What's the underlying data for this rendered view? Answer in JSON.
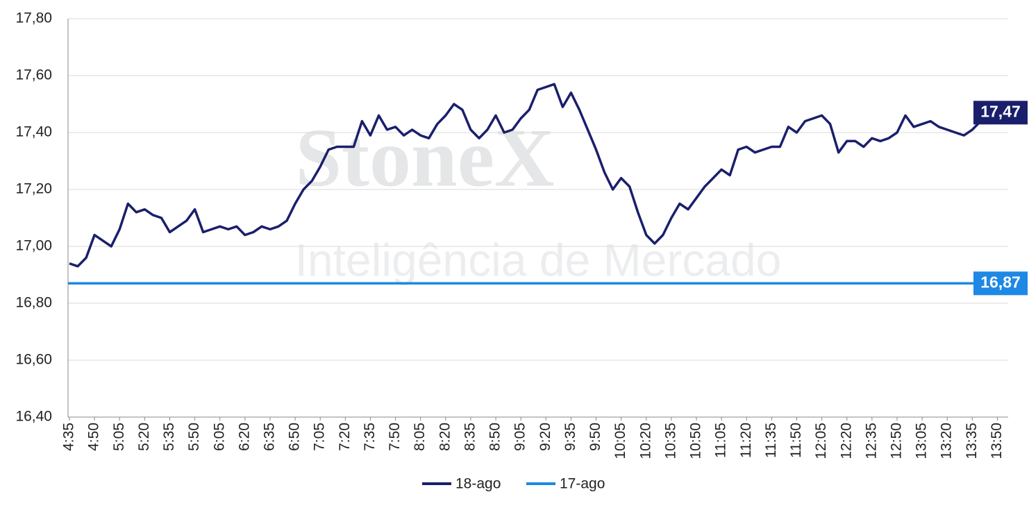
{
  "chart_data": {
    "type": "line",
    "watermark": {
      "brand": "StoneX",
      "tagline": "Inteligência de Mercado"
    },
    "categories": [
      "4:35",
      null,
      null,
      "4:50",
      null,
      null,
      "5:05",
      null,
      null,
      "5:20",
      null,
      null,
      "5:35",
      null,
      null,
      "5:50",
      null,
      null,
      "6:05",
      null,
      null,
      "6:20",
      null,
      null,
      "6:35",
      null,
      null,
      "6:50",
      null,
      null,
      "7:05",
      null,
      null,
      "7:20",
      null,
      null,
      "7:35",
      null,
      null,
      "7:50",
      null,
      null,
      "8:05",
      null,
      null,
      "8:20",
      null,
      null,
      "8:35",
      null,
      null,
      "8:50",
      null,
      null,
      "9:05",
      null,
      null,
      "9:20",
      null,
      null,
      "9:35",
      null,
      null,
      "9:50",
      null,
      null,
      "10:05",
      null,
      null,
      "10:20",
      null,
      null,
      "10:35",
      null,
      null,
      "10:50",
      null,
      null,
      "11:05",
      null,
      null,
      "11:20",
      null,
      null,
      "11:35",
      null,
      null,
      "11:50",
      null,
      null,
      "12:05",
      null,
      null,
      "12:20",
      null,
      null,
      "12:35",
      null,
      null,
      "12:50",
      null,
      null,
      "13:05",
      null,
      null,
      "13:20",
      null,
      null,
      "13:35",
      null,
      null,
      "13:50",
      null
    ],
    "series": [
      {
        "name": "18-ago",
        "color": "#1a1f6b",
        "values": [
          16.94,
          16.93,
          16.96,
          17.04,
          17.02,
          17.0,
          17.06,
          17.15,
          17.12,
          17.13,
          17.11,
          17.1,
          17.05,
          17.07,
          17.09,
          17.13,
          17.05,
          17.06,
          17.07,
          17.06,
          17.07,
          17.04,
          17.05,
          17.07,
          17.06,
          17.07,
          17.09,
          17.15,
          17.2,
          17.23,
          17.28,
          17.34,
          17.35,
          17.35,
          17.35,
          17.44,
          17.39,
          17.46,
          17.41,
          17.42,
          17.39,
          17.41,
          17.39,
          17.38,
          17.43,
          17.46,
          17.5,
          17.48,
          17.41,
          17.38,
          17.41,
          17.46,
          17.4,
          17.41,
          17.45,
          17.48,
          17.55,
          17.56,
          17.57,
          17.49,
          17.54,
          17.48,
          17.41,
          17.34,
          17.26,
          17.2,
          17.24,
          17.21,
          17.12,
          17.04,
          17.01,
          17.04,
          17.1,
          17.15,
          17.13,
          17.17,
          17.21,
          17.24,
          17.27,
          17.25,
          17.34,
          17.35,
          17.33,
          17.34,
          17.35,
          17.35,
          17.42,
          17.4,
          17.44,
          17.45,
          17.46,
          17.43,
          17.33,
          17.37,
          17.37,
          17.35,
          17.38,
          17.37,
          17.38,
          17.4,
          17.46,
          17.42,
          17.43,
          17.44,
          17.42,
          17.41,
          17.4,
          17.39,
          17.41,
          17.44,
          17.45,
          17.46,
          17.47
        ],
        "value_labels": [
          null,
          null,
          null,
          null,
          null,
          null,
          null,
          null,
          null,
          null,
          null,
          null,
          null,
          null,
          null,
          null,
          null,
          null,
          null,
          null,
          null,
          null,
          null,
          null,
          null,
          null,
          null,
          null,
          null,
          null,
          null,
          null,
          null,
          null,
          null,
          null,
          null,
          null,
          null,
          null,
          null,
          null,
          null,
          null,
          null,
          null,
          null,
          null,
          null,
          null,
          null,
          null,
          null,
          null,
          null,
          null,
          null,
          null,
          null,
          null,
          null,
          null,
          null,
          null,
          null,
          null,
          null,
          null,
          null,
          null,
          null,
          null,
          null,
          null,
          null,
          null,
          null,
          null,
          null,
          null,
          null,
          null,
          null,
          null,
          null,
          null,
          null,
          null,
          null,
          null,
          null,
          null,
          null,
          null,
          null,
          null,
          null,
          null,
          null,
          null,
          null,
          null,
          null,
          null,
          null,
          null,
          null,
          null,
          null,
          null,
          null,
          null,
          "17,47"
        ]
      },
      {
        "name": "17-ago",
        "color": "#1e88e5",
        "value": 16.87,
        "value_label": "16,87"
      }
    ],
    "ylim": [
      16.4,
      17.8
    ],
    "yticks": [
      {
        "value": 16.4,
        "label": "16,40"
      },
      {
        "value": 16.6,
        "label": "16,60"
      },
      {
        "value": 16.8,
        "label": "16,80"
      },
      {
        "value": 17.0,
        "label": "17,00"
      },
      {
        "value": 17.2,
        "label": "17,20"
      },
      {
        "value": 17.4,
        "label": "17,40"
      },
      {
        "value": 17.6,
        "label": "17,60"
      },
      {
        "value": 17.8,
        "label": "17,80"
      }
    ],
    "grid": true,
    "legend": "bottom"
  }
}
